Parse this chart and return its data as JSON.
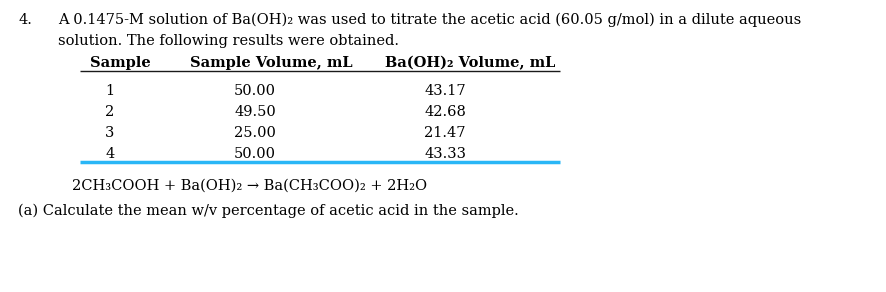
{
  "problem_number": "4.",
  "intro_text_line1": "A 0.1475-M solution of Ba(OH)₂ was used to titrate the acetic acid (60.05 g/mol) in a dilute aqueous",
  "intro_text_line2": "solution. The following results were obtained.",
  "col_headers": [
    "Sample",
    "Sample Volume, mL",
    "Ba(OH)₂ Volume, mL"
  ],
  "table_data": [
    [
      "1",
      "50.00",
      "43.17"
    ],
    [
      "2",
      "49.50",
      "42.68"
    ],
    [
      "3",
      "25.00",
      "21.47"
    ],
    [
      "4",
      "50.00",
      "43.33"
    ]
  ],
  "equation": "2CH₃COOH + Ba(OH)₂ → Ba(CH₃COO)₂ + 2H₂O",
  "question": "(a) Calculate the mean w/v percentage of acetic acid in the sample.",
  "background_color": "#ffffff",
  "text_color": "#000000",
  "header_line_color": "#1a1a1a",
  "bottom_line_color": "#29b6f6",
  "font_size": 10.5,
  "bold_font_size": 10.5
}
